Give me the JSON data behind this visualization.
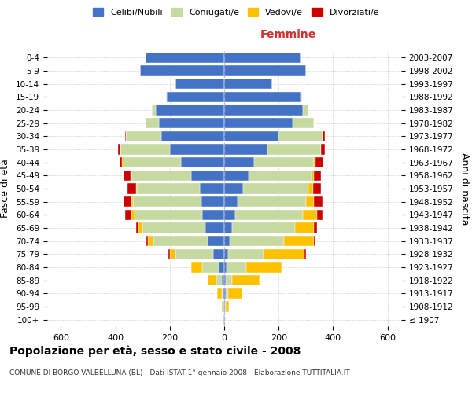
{
  "age_groups": [
    "100+",
    "95-99",
    "90-94",
    "85-89",
    "80-84",
    "75-79",
    "70-74",
    "65-69",
    "60-64",
    "55-59",
    "50-54",
    "45-49",
    "40-44",
    "35-39",
    "30-34",
    "25-29",
    "20-24",
    "15-19",
    "10-14",
    "5-9",
    "0-4"
  ],
  "birth_years": [
    "≤ 1907",
    "1908-1912",
    "1913-1917",
    "1918-1922",
    "1923-1927",
    "1928-1932",
    "1933-1937",
    "1938-1942",
    "1943-1947",
    "1948-1952",
    "1953-1957",
    "1958-1962",
    "1963-1967",
    "1968-1972",
    "1973-1977",
    "1978-1982",
    "1983-1987",
    "1988-1992",
    "1993-1997",
    "1998-2002",
    "2003-2007"
  ],
  "colors": {
    "celibe": "#4472c4",
    "coniugato": "#c5d9a0",
    "vedovo": "#ffc000",
    "divorziato": "#cc0000"
  },
  "maschi": {
    "celibe": [
      2,
      3,
      5,
      10,
      20,
      40,
      60,
      70,
      80,
      85,
      90,
      120,
      160,
      200,
      230,
      240,
      250,
      210,
      180,
      310,
      290
    ],
    "coniugato": [
      0,
      0,
      5,
      20,
      60,
      140,
      200,
      230,
      250,
      250,
      230,
      220,
      210,
      180,
      130,
      50,
      15,
      5,
      0,
      0,
      0
    ],
    "vedovo": [
      0,
      5,
      15,
      30,
      40,
      20,
      20,
      15,
      10,
      5,
      5,
      5,
      5,
      0,
      0,
      0,
      0,
      0,
      0,
      0,
      0
    ],
    "divorziato": [
      0,
      0,
      0,
      0,
      0,
      5,
      5,
      10,
      25,
      30,
      30,
      25,
      10,
      10,
      5,
      0,
      0,
      0,
      0,
      0,
      0
    ]
  },
  "femmine": {
    "nubile": [
      2,
      3,
      5,
      5,
      10,
      15,
      20,
      30,
      40,
      50,
      70,
      90,
      110,
      160,
      200,
      250,
      290,
      280,
      175,
      300,
      280
    ],
    "coniugata": [
      0,
      3,
      10,
      25,
      70,
      130,
      200,
      230,
      250,
      250,
      240,
      230,
      220,
      195,
      160,
      80,
      20,
      5,
      0,
      0,
      0
    ],
    "vedova": [
      0,
      10,
      50,
      100,
      130,
      150,
      110,
      70,
      50,
      30,
      15,
      10,
      5,
      0,
      0,
      0,
      0,
      0,
      0,
      0,
      0
    ],
    "divorziata": [
      0,
      0,
      0,
      0,
      0,
      5,
      5,
      10,
      20,
      30,
      30,
      25,
      30,
      15,
      10,
      0,
      0,
      0,
      0,
      0,
      0
    ]
  },
  "xlim": 650,
  "title": "Popolazione per età, sesso e stato civile - 2008",
  "subtitle": "COMUNE DI BORGO VALBELLUNA (BL) - Dati ISTAT 1° gennaio 2008 - Elaborazione TUTTITALIA.IT",
  "ylabel_left": "Fasce di età",
  "ylabel_right": "Anni di nascita",
  "legend_labels": [
    "Celibi/Nubili",
    "Coniugati/e",
    "Vedovi/e",
    "Divorziati/e"
  ],
  "legend_colors": [
    "#4472c4",
    "#c5d9a0",
    "#ffc000",
    "#cc0000"
  ],
  "bg_color": "#ffffff",
  "grid_color": "#cccccc"
}
